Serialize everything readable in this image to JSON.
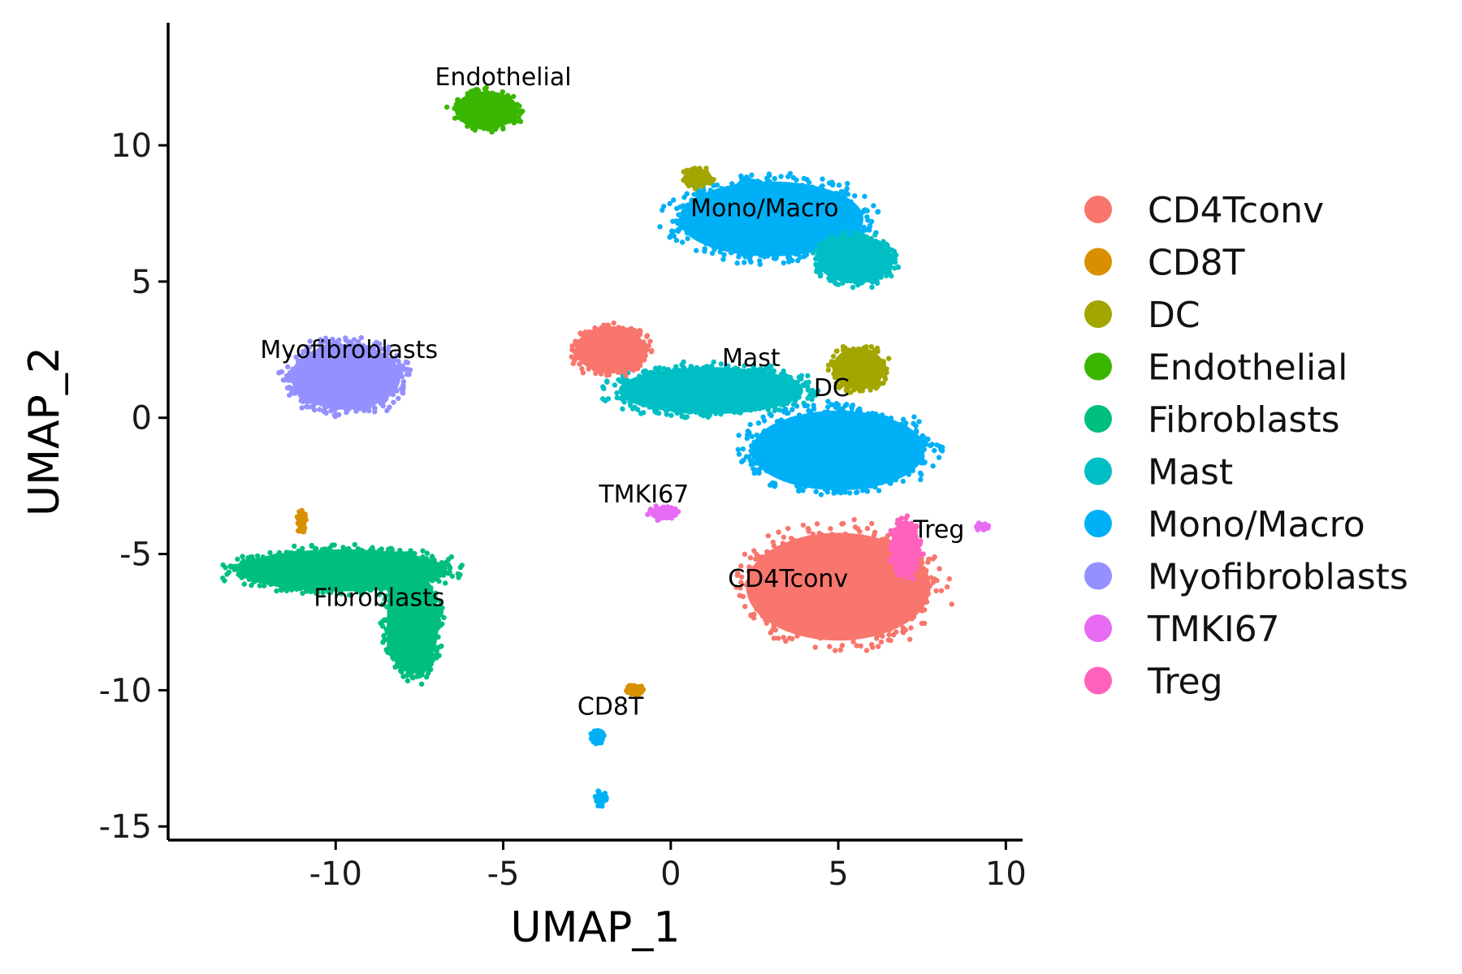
{
  "chart_data": {
    "type": "scatter",
    "title": "",
    "xlabel": "UMAP_1",
    "ylabel": "UMAP_2",
    "xlim": [
      -15,
      10.5
    ],
    "ylim": [
      -15.5,
      14.5
    ],
    "x_ticks": [
      -10,
      -5,
      0,
      5,
      10
    ],
    "y_ticks": [
      -15,
      -10,
      -5,
      0,
      5,
      10
    ],
    "x_tick_labels": [
      "-10",
      "-5",
      "0",
      "5",
      "10"
    ],
    "y_tick_labels": [
      "-15",
      "-10",
      "-5",
      "0",
      "5",
      "10"
    ],
    "grid": false,
    "legend_position": "right",
    "series": [
      {
        "name": "CD4Tconv",
        "color": "#F8766D"
      },
      {
        "name": "CD8T",
        "color": "#D89000"
      },
      {
        "name": "DC",
        "color": "#A3A500"
      },
      {
        "name": "Endothelial",
        "color": "#39B600"
      },
      {
        "name": "Fibroblasts",
        "color": "#00BF7D"
      },
      {
        "name": "Mast",
        "color": "#00BFC4"
      },
      {
        "name": "Mono/Macro",
        "color": "#00B0F6"
      },
      {
        "name": "Myofibroblasts",
        "color": "#9590FF"
      },
      {
        "name": "TMKI67",
        "color": "#E76BF3"
      },
      {
        "name": "Treg",
        "color": "#FF62BC"
      }
    ],
    "clusters": [
      {
        "name": "Endothelial",
        "x": -5.5,
        "y": 11.3,
        "rx": 1.1,
        "ry": 0.8
      },
      {
        "name": "Mono/Macro",
        "x": 3.0,
        "y": 7.3,
        "rx": 3.2,
        "ry": 1.6
      },
      {
        "name": "Mast",
        "x": 1.2,
        "y": 1.0,
        "rx": 3.2,
        "ry": 1.0
      },
      {
        "name": "Mast",
        "x": 5.5,
        "y": 5.8,
        "rx": 1.3,
        "ry": 1.0
      },
      {
        "name": "DC",
        "x": 5.6,
        "y": 1.8,
        "rx": 0.9,
        "ry": 0.9
      },
      {
        "name": "DC",
        "x": 0.8,
        "y": 8.8,
        "rx": 0.5,
        "ry": 0.4
      },
      {
        "name": "Mono/Macro",
        "x": 5.0,
        "y": -1.2,
        "rx": 3.0,
        "ry": 1.7
      },
      {
        "name": "CD4Tconv",
        "x": -1.8,
        "y": 2.5,
        "rx": 1.2,
        "ry": 1.0
      },
      {
        "name": "CD4Tconv",
        "x": 5.0,
        "y": -6.2,
        "rx": 3.2,
        "ry": 2.3
      },
      {
        "name": "Treg",
        "x": 7.0,
        "y": -4.8,
        "rx": 0.5,
        "ry": 1.2
      },
      {
        "name": "TMKI67",
        "x": -0.2,
        "y": -3.5,
        "rx": 0.5,
        "ry": 0.3
      },
      {
        "name": "TMKI67",
        "x": 9.3,
        "y": -4.0,
        "rx": 0.2,
        "ry": 0.15
      },
      {
        "name": "Myofibroblasts",
        "x": -9.7,
        "y": 1.5,
        "rx": 1.9,
        "ry": 1.4
      },
      {
        "name": "Fibroblasts",
        "x": -9.8,
        "y": -5.6,
        "rx": 3.6,
        "ry": 0.9
      },
      {
        "name": "Fibroblasts",
        "x": -7.7,
        "y": -7.5,
        "rx": 0.9,
        "ry": 2.2
      },
      {
        "name": "CD8T",
        "x": -1.1,
        "y": -10.0,
        "rx": 0.3,
        "ry": 0.2
      },
      {
        "name": "CD8T",
        "x": -11.0,
        "y": -3.8,
        "rx": 0.15,
        "ry": 0.5
      },
      {
        "name": "Mono/Macro",
        "x": -2.2,
        "y": -11.7,
        "rx": 0.2,
        "ry": 0.3
      },
      {
        "name": "Mono/Macro",
        "x": -2.1,
        "y": -14.0,
        "rx": 0.2,
        "ry": 0.3
      }
    ],
    "annotations": [
      {
        "text": "Endothelial",
        "x": -5.0,
        "y": 12.2
      },
      {
        "text": "Mono/Macro",
        "x": 2.8,
        "y": 7.4
      },
      {
        "text": "Mast",
        "x": 2.4,
        "y": 1.9
      },
      {
        "text": "DC",
        "x": 4.8,
        "y": 0.8
      },
      {
        "text": "Myofibroblasts",
        "x": -9.6,
        "y": 2.2
      },
      {
        "text": "TMKI67",
        "x": -0.8,
        "y": -3.1
      },
      {
        "text": "Treg",
        "x": 8.0,
        "y": -4.4
      },
      {
        "text": "CD4Tconv",
        "x": 3.5,
        "y": -6.2
      },
      {
        "text": "Fibroblasts",
        "x": -8.7,
        "y": -6.9
      },
      {
        "text": "CD8T",
        "x": -1.8,
        "y": -10.9
      }
    ]
  }
}
